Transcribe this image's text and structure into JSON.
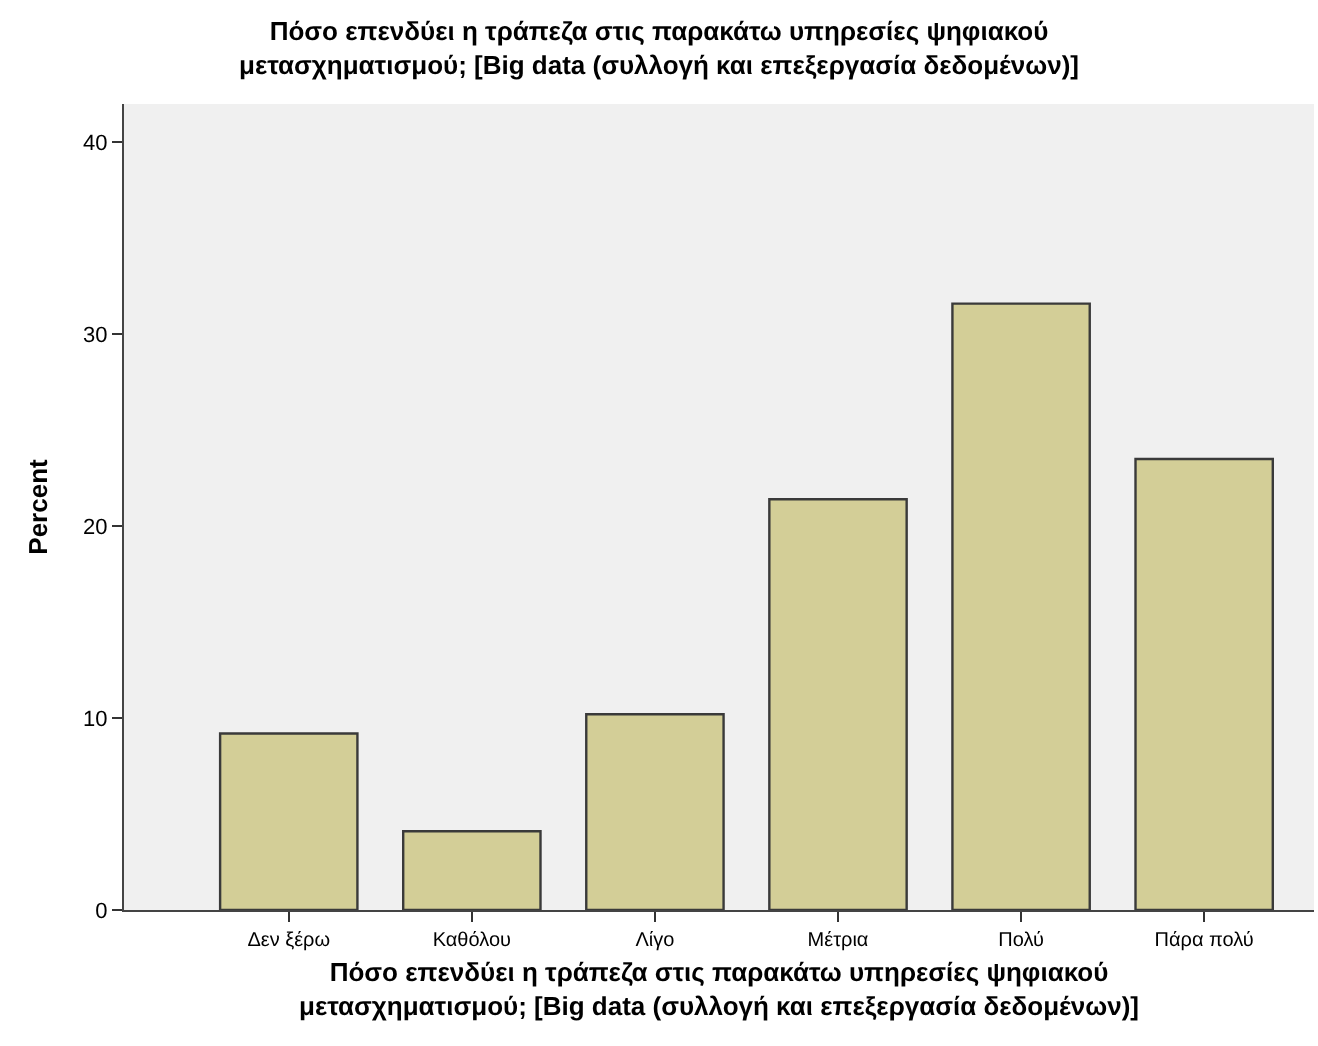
{
  "chart_data": {
    "type": "bar",
    "title": "Πόσο επενδύει η τράπεζα στις παρακάτω υπηρεσίες ψηφιακού\nμετασχηματισμού; [Big data (συλλογή και επεξεργασία δεδομένων)]",
    "xlabel": "Πόσο επενδύει η τράπεζα στις παρακάτω υπηρεσίες ψηφιακού\nμετασχηματισμού; [Big data (συλλογή και επεξεργασία δεδομένων)]",
    "ylabel": "Percent",
    "categories": [
      "Δεν ξέρω",
      "Καθόλου",
      "Λίγο",
      "Μέτρια",
      "Πολύ",
      "Πάρα πολύ"
    ],
    "values": [
      9.2,
      4.1,
      10.2,
      21.4,
      31.6,
      23.5
    ],
    "color": "#d3ce97",
    "ylim": [
      0,
      42
    ],
    "yticks": [
      0,
      10,
      20,
      30,
      40
    ],
    "grid": false,
    "legend": false
  }
}
